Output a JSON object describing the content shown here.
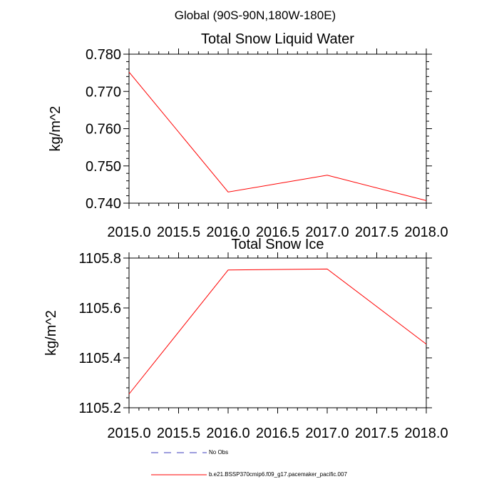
{
  "page": {
    "title": "Global (90S-90N,180W-180E)"
  },
  "chart_data": [
    {
      "type": "line",
      "title": "Total Snow Liquid Water",
      "xlabel": "",
      "ylabel": "kg/m^2",
      "x": [
        2015.0,
        2016.0,
        2017.0,
        2018.0
      ],
      "xlim": [
        2015.0,
        2018.0
      ],
      "xticks": [
        "2015.0",
        "2015.5",
        "2016.0",
        "2016.5",
        "2017.0",
        "2017.5",
        "2018.0"
      ],
      "ylim": [
        0.74,
        0.78
      ],
      "yticks": [
        "0.740",
        "0.750",
        "0.760",
        "0.770",
        "0.780"
      ],
      "grid": false,
      "series": [
        {
          "name": "b.e21.BSSP370cmip6.f09_g17.pacemaker_pacific.007",
          "color": "#ff0000",
          "values": [
            0.7752,
            0.743,
            0.7475,
            0.7407
          ]
        }
      ]
    },
    {
      "type": "line",
      "title": "Total Snow Ice",
      "xlabel": "",
      "ylabel": "kg/m^2",
      "x": [
        2015.0,
        2016.0,
        2017.0,
        2018.0
      ],
      "xlim": [
        2015.0,
        2018.0
      ],
      "xticks": [
        "2015.0",
        "2015.5",
        "2016.0",
        "2016.5",
        "2017.0",
        "2017.5",
        "2018.0"
      ],
      "ylim": [
        1105.2,
        1105.8
      ],
      "yticks": [
        "1105.2",
        "1105.4",
        "1105.6",
        "1105.8"
      ],
      "grid": false,
      "series": [
        {
          "name": "b.e21.BSSP370cmip6.f09_g17.pacemaker_pacific.007",
          "color": "#ff0000",
          "values": [
            1105.255,
            1105.752,
            1105.756,
            1105.455
          ]
        }
      ]
    }
  ],
  "legend": [
    {
      "label": "No Obs",
      "color": "#3b3bbd",
      "style": "dashed"
    },
    {
      "label": "b.e21.BSSP370cmip6.f09_g17.pacemaker_pacific.007",
      "color": "#ff0000",
      "style": "solid"
    }
  ]
}
